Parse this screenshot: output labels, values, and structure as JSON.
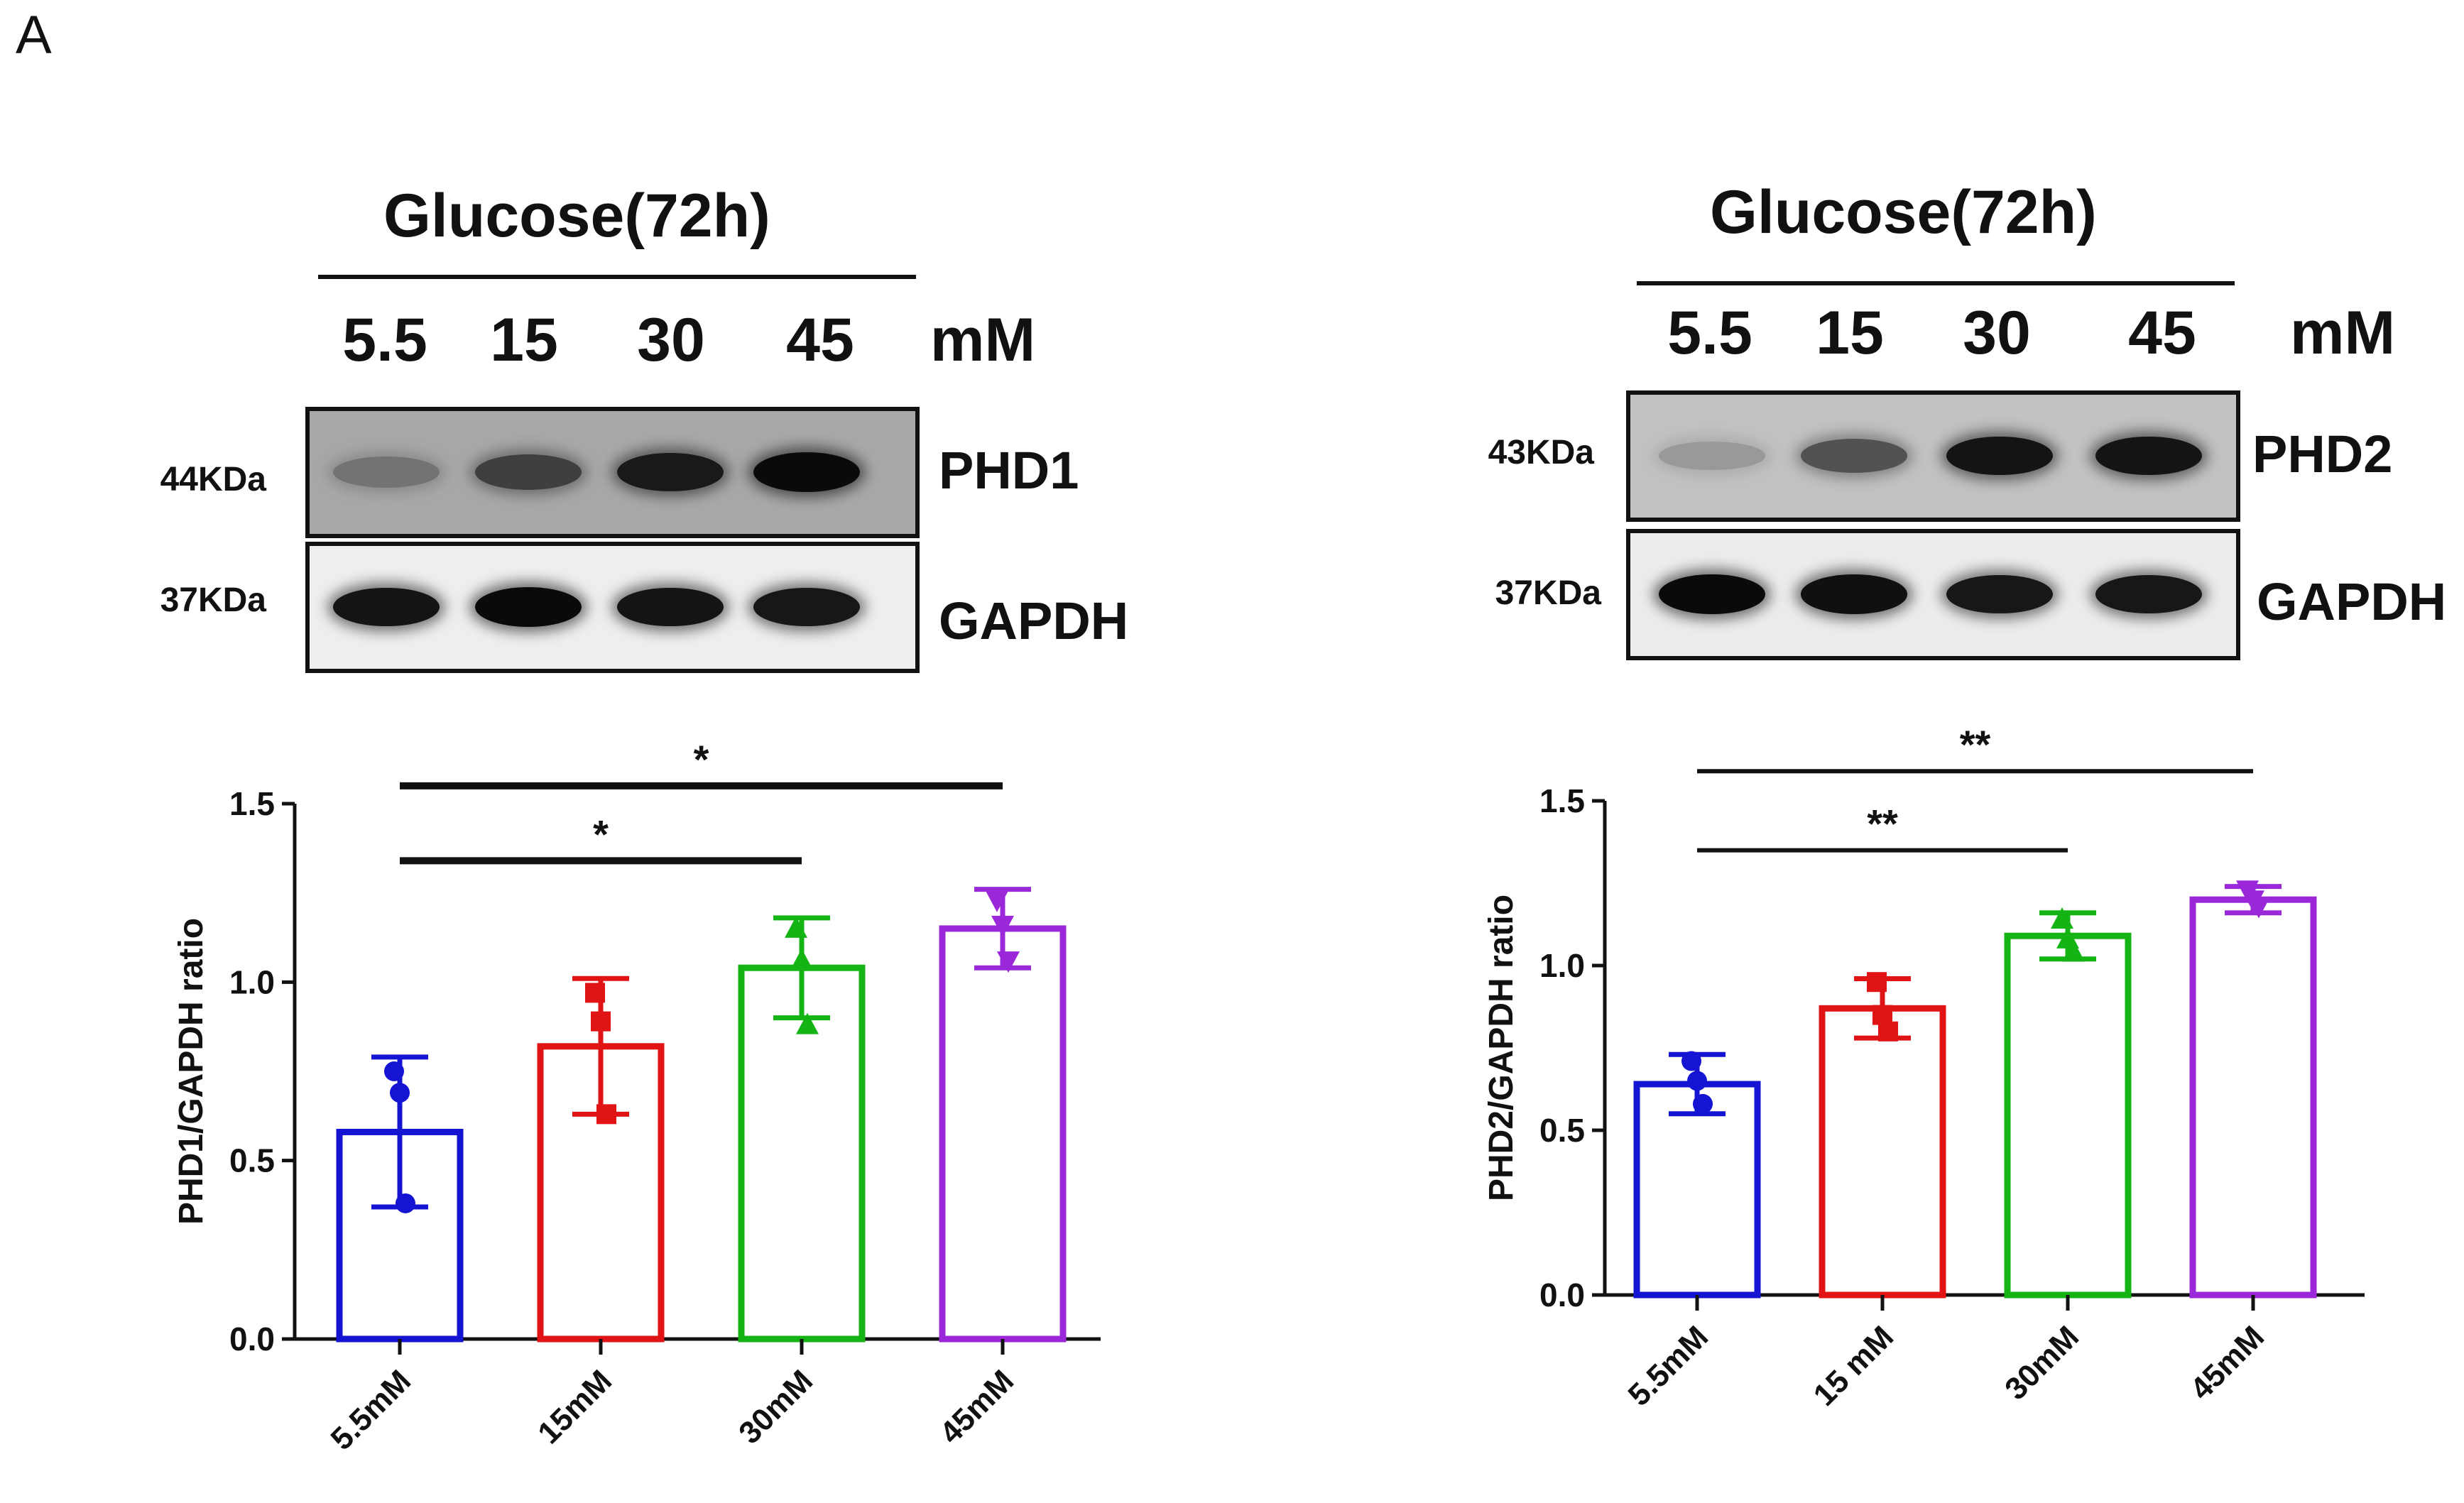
{
  "figure": {
    "panel_label": "A"
  },
  "panels": [
    {
      "id": "left",
      "blot": {
        "title": "Glucose(72h)",
        "lanes": [
          "5.5",
          "15",
          "30",
          "45"
        ],
        "unit": "mM",
        "rows": [
          {
            "protein": "PHD1",
            "kda": "44KDa",
            "bg": "#a8a8a8",
            "intensities": [
              0.45,
              0.72,
              0.92,
              1.0
            ]
          },
          {
            "protein": "GAPDH",
            "kda": "37KDa",
            "bg": "#eeeeee",
            "intensities": [
              0.95,
              1.0,
              0.95,
              0.93
            ]
          }
        ]
      }
    },
    {
      "id": "right",
      "blot": {
        "title": "Glucose(72h)",
        "lanes": [
          "5.5",
          "15",
          "30",
          "45"
        ],
        "unit": "mM",
        "rows": [
          {
            "protein": "PHD2",
            "kda": "43KDa",
            "bg": "#c2c2c2",
            "intensities": [
              0.25,
              0.62,
              0.95,
              0.95
            ]
          },
          {
            "protein": "GAPDH",
            "kda": "37KDa",
            "bg": "#ececec",
            "intensities": [
              1.0,
              0.97,
              0.93,
              0.93
            ]
          }
        ]
      }
    }
  ],
  "chart_data": [
    {
      "type": "bar",
      "categories": [
        "5.5mM",
        "15mM",
        "30mM",
        "45mM"
      ],
      "values": [
        0.58,
        0.82,
        1.04,
        1.15
      ],
      "error": [
        0.21,
        0.19,
        0.14,
        0.11
      ],
      "points": [
        [
          0.75,
          0.69,
          0.38
        ],
        [
          0.97,
          0.89,
          0.63
        ],
        [
          1.15,
          1.06,
          0.88
        ],
        [
          1.23,
          1.16,
          1.06
        ]
      ],
      "markers": [
        "circle",
        "square",
        "triangle-up",
        "triangle-down"
      ],
      "colors": [
        "#1414d2",
        "#e01414",
        "#14b414",
        "#9a28d8"
      ],
      "ylabel": "PHD1/GAPDH ratio",
      "xlabel": "",
      "ylim": [
        0.0,
        1.5
      ],
      "yticks": [
        "0.0",
        "0.5",
        "1.0",
        "1.5"
      ],
      "yticks_values": [
        0.0,
        0.5,
        1.0,
        1.5
      ],
      "significance": [
        {
          "from": 0,
          "to": 3,
          "label": "*",
          "y": 1.55
        },
        {
          "from": 0,
          "to": 2,
          "label": "*",
          "y": 1.34
        }
      ]
    },
    {
      "type": "bar",
      "categories": [
        "5.5mM",
        "15 mM",
        "30mM",
        "45mM"
      ],
      "values": [
        0.64,
        0.87,
        1.09,
        1.2
      ],
      "error": [
        0.09,
        0.09,
        0.07,
        0.04
      ],
      "points": [
        [
          0.71,
          0.65,
          0.58
        ],
        [
          0.95,
          0.85,
          0.8
        ],
        [
          1.14,
          1.08,
          1.04
        ],
        [
          1.23,
          1.2,
          1.18
        ]
      ],
      "markers": [
        "circle",
        "square",
        "triangle-up",
        "triangle-down"
      ],
      "colors": [
        "#1414d2",
        "#e01414",
        "#14b414",
        "#9a28d8"
      ],
      "ylabel": "PHD2/GAPDH ratio",
      "xlabel": "",
      "ylim": [
        0.0,
        1.5
      ],
      "yticks": [
        "0.0",
        "0.5",
        "1.0",
        "1.5"
      ],
      "yticks_values": [
        0.0,
        0.5,
        1.0,
        1.5
      ],
      "significance": [
        {
          "from": 0,
          "to": 3,
          "label": "**",
          "y": 1.59
        },
        {
          "from": 0,
          "to": 2,
          "label": "**",
          "y": 1.35
        }
      ]
    }
  ]
}
